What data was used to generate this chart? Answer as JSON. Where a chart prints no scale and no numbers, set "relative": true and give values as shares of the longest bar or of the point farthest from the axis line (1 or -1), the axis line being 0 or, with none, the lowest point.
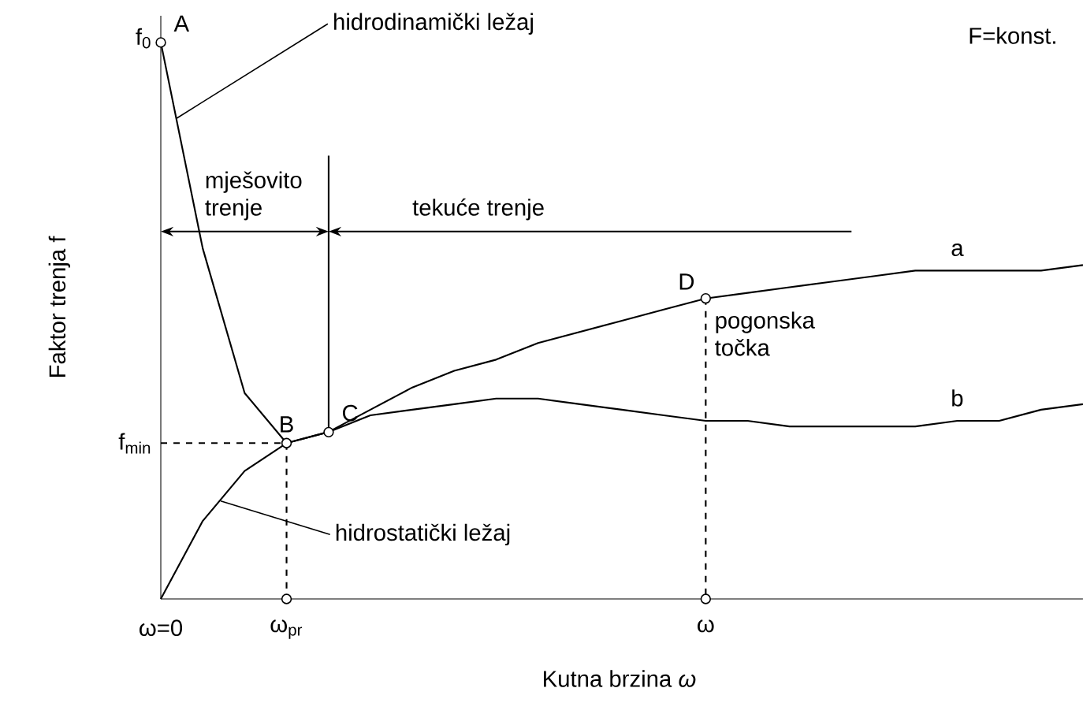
{
  "chart_data": {
    "type": "line",
    "relative": true,
    "xlabel": "Kutna brzina *ω*",
    "ylabel": "Faktor trenja f",
    "categories": [
      "ω=0",
      null,
      null,
      "ω$_{pr}$",
      null,
      null,
      null,
      null,
      null,
      null,
      null,
      null,
      null,
      "ω",
      null,
      null,
      null,
      null,
      null,
      null,
      null,
      null,
      null
    ],
    "series": [
      {
        "name": "a",
        "color": "#000000",
        "values": [
          1,
          0.63,
          0.37,
          0.28,
          0.3,
          0.34,
          0.38,
          0.41,
          0.43,
          0.46,
          0.48,
          0.5,
          0.52,
          0.54,
          0.55,
          0.56,
          0.57,
          0.58,
          0.59,
          0.59,
          0.59,
          0.59,
          0.6
        ]
      },
      {
        "name": "b",
        "color": "#000000",
        "values": [
          0,
          0.14,
          0.23,
          0.28,
          0.3,
          0.33,
          0.34,
          0.35,
          0.36,
          0.36,
          0.35,
          0.34,
          0.33,
          0.32,
          0.32,
          0.31,
          0.31,
          0.31,
          0.31,
          0.32,
          0.32,
          0.34,
          0.35
        ]
      }
    ],
    "annotations": [
      {
        "text": "A",
        "x": "ω=0",
        "y": 1
      },
      {
        "text": "B",
        "x": "ω$_{pr}$",
        "y": 0.28
      },
      "C",
      {
        "text": "D",
        "x": "ω",
        "y": 0.54
      },
      "pogonska točka",
      "hidrodinamički ležaj",
      "hidrostatički ležaj",
      "F=konst.",
      "mješovito trenje",
      "tekuće trenje",
      {
        "text": "f$_{0}$",
        "x": "ω=0",
        "y": 1
      },
      "f$_{min}$"
    ]
  }
}
